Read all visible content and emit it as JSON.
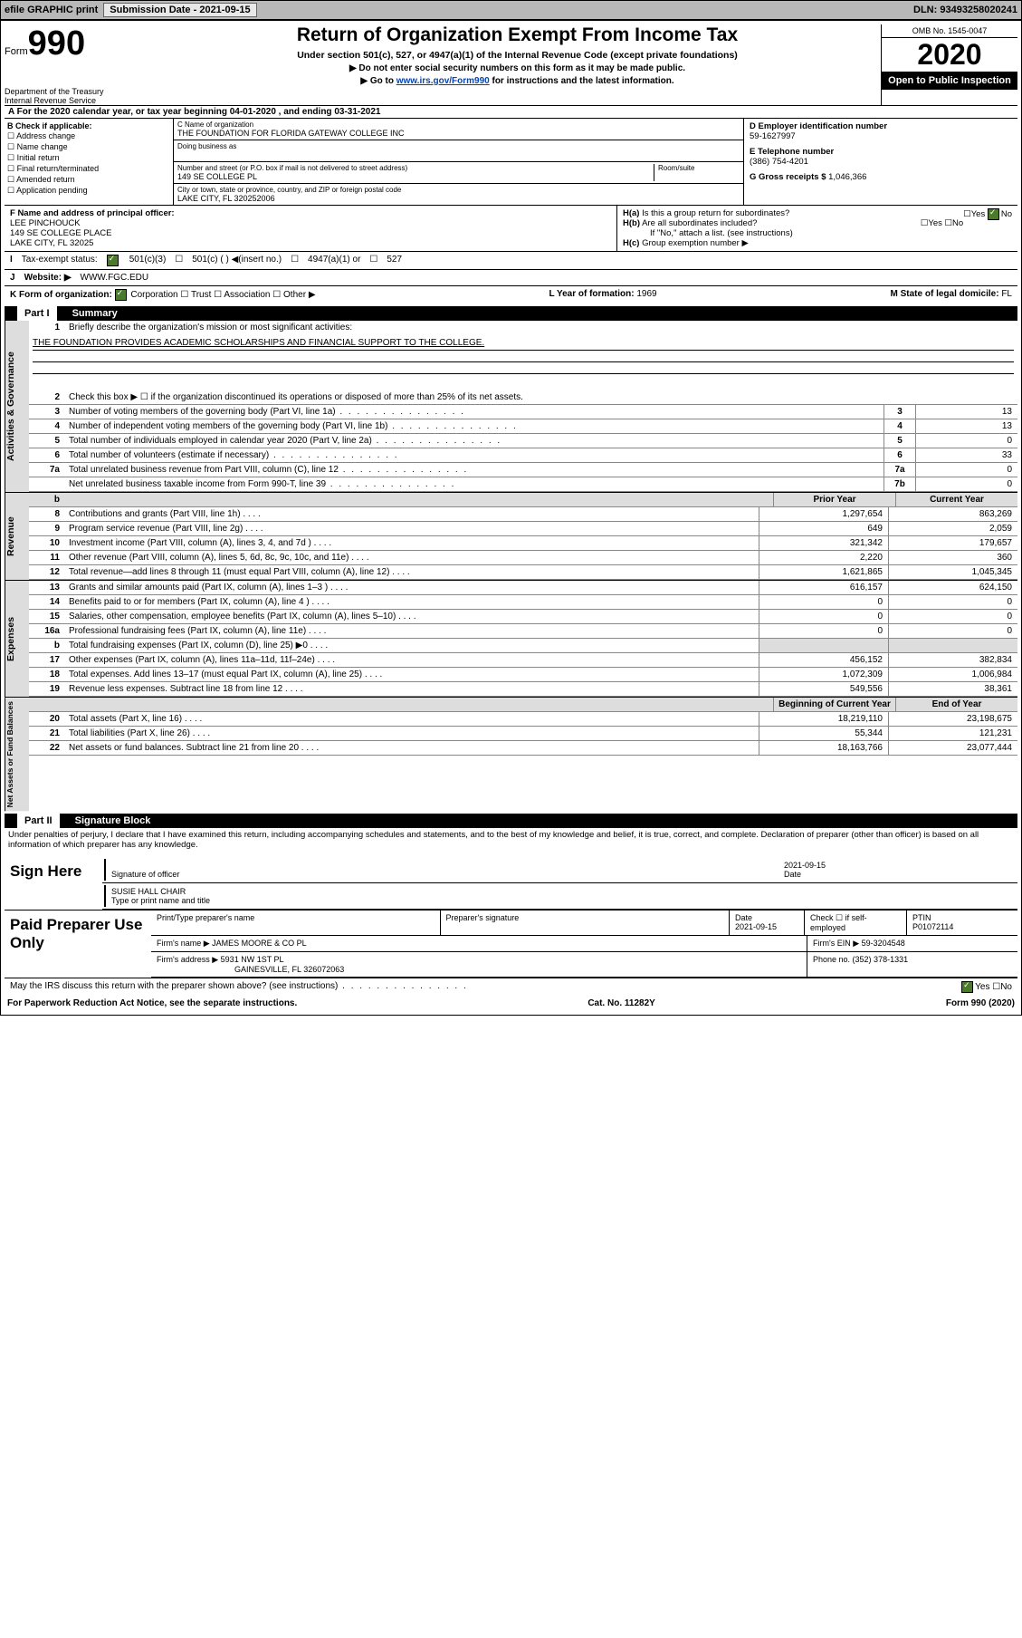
{
  "topbar": {
    "efile": "efile GRAPHIC print",
    "subdate_lbl": "Submission Date - ",
    "subdate": "2021-09-15",
    "dln_lbl": "DLN: ",
    "dln": "93493258020241"
  },
  "hdr": {
    "form": "Form",
    "n990": "990",
    "title": "Return of Organization Exempt From Income Tax",
    "sub": "Under section 501(c), 527, or 4947(a)(1) of the Internal Revenue Code (except private foundations)",
    "l1": "▶ Do not enter social security numbers on this form as it may be made public.",
    "l2a": "▶ Go to ",
    "l2link": "www.irs.gov/Form990",
    "l2b": " for instructions and the latest information.",
    "dept": "Department of the Treasury\nInternal Revenue Service",
    "omb": "OMB No. 1545-0047",
    "year": "2020",
    "open": "Open to Public Inspection"
  },
  "A": {
    "txt": "A For the 2020 calendar year, or tax year beginning 04-01-2020     , and ending 03-31-2021"
  },
  "B": {
    "hdr": "B Check if applicable:",
    "items": [
      "Address change",
      "Name change",
      "Initial return",
      "Final return/terminated",
      "Amended return",
      "Application pending"
    ]
  },
  "C": {
    "namelbl": "C Name of organization",
    "name": "THE FOUNDATION FOR FLORIDA GATEWAY COLLEGE INC",
    "dba": "Doing business as",
    "addrlbl": "Number and street (or P.O. box if mail is not delivered to street address)",
    "addr": "149 SE COLLEGE PL",
    "room": "Room/suite",
    "citylbl": "City or town, state or province, country, and ZIP or foreign postal code",
    "city": "LAKE CITY, FL  320252006"
  },
  "D": {
    "lbl": "D Employer identification number",
    "val": "59-1627997"
  },
  "E": {
    "lbl": "E Telephone number",
    "val": "(386) 754-4201"
  },
  "G": {
    "lbl": "G Gross receipts $ ",
    "val": "1,046,366"
  },
  "F": {
    "lbl": "F  Name and address of principal officer:",
    "name": "LEE PINCHOUCK",
    "addr1": "149 SE COLLEGE PLACE",
    "addr2": "LAKE CITY, FL  32025"
  },
  "H": {
    "a": "Is this a group return for subordinates?",
    "b": "Are all subordinates included?",
    "bno": "If \"No,\" attach a list. (see instructions)",
    "c": "Group exemption number ▶"
  },
  "I": {
    "lbl": "Tax-exempt status:",
    "o1": "501(c)(3)",
    "o2": "501(c) (   ) ◀(insert no.)",
    "o3": "4947(a)(1) or",
    "o4": "527"
  },
  "J": {
    "lbl": "Website: ▶",
    "val": "WWW.FGC.EDU"
  },
  "K": {
    "lbl": "K Form of organization:",
    "o1": "Corporation",
    "o2": "Trust",
    "o3": "Association",
    "o4": "Other ▶"
  },
  "L": {
    "lbl": "L Year of formation: ",
    "val": "1969"
  },
  "M": {
    "lbl": "M State of legal domicile: ",
    "val": "FL"
  },
  "partI": {
    "title": "Part I",
    "sub": "Summary"
  },
  "p1": {
    "l1": "Briefly describe the organization's mission or most significant activities:",
    "mission": "THE FOUNDATION PROVIDES ACADEMIC SCHOLARSHIPS AND FINANCIAL SUPPORT TO THE COLLEGE.",
    "l2": "Check this box ▶ ☐  if the organization discontinued its operations or disposed of more than 25% of its net assets.",
    "l3": "Number of voting members of the governing body (Part VI, line 1a)",
    "l4": "Number of independent voting members of the governing body (Part VI, line 1b)",
    "l5": "Total number of individuals employed in calendar year 2020 (Part V, line 2a)",
    "l6": "Total number of volunteers (estimate if necessary)",
    "l7a": "Total unrelated business revenue from Part VIII, column (C), line 12",
    "l7b": "Net unrelated business taxable income from Form 990-T, line 39",
    "v3": "13",
    "v4": "13",
    "v5": "0",
    "v6": "33",
    "v7a": "0",
    "v7b": "0"
  },
  "cols": {
    "prior": "Prior Year",
    "curr": "Current Year",
    "boy": "Beginning of Current Year",
    "eoy": "End of Year"
  },
  "rev": {
    "vl": "Revenue",
    "r": [
      {
        "n": "8",
        "d": "Contributions and grants (Part VIII, line 1h)",
        "p": "1,297,654",
        "c": "863,269"
      },
      {
        "n": "9",
        "d": "Program service revenue (Part VIII, line 2g)",
        "p": "649",
        "c": "2,059"
      },
      {
        "n": "10",
        "d": "Investment income (Part VIII, column (A), lines 3, 4, and 7d )",
        "p": "321,342",
        "c": "179,657"
      },
      {
        "n": "11",
        "d": "Other revenue (Part VIII, column (A), lines 5, 6d, 8c, 9c, 10c, and 11e)",
        "p": "2,220",
        "c": "360"
      },
      {
        "n": "12",
        "d": "Total revenue—add lines 8 through 11 (must equal Part VIII, column (A), line 12)",
        "p": "1,621,865",
        "c": "1,045,345"
      }
    ]
  },
  "exp": {
    "vl": "Expenses",
    "r": [
      {
        "n": "13",
        "d": "Grants and similar amounts paid (Part IX, column (A), lines 1–3 )",
        "p": "616,157",
        "c": "624,150"
      },
      {
        "n": "14",
        "d": "Benefits paid to or for members (Part IX, column (A), line 4 )",
        "p": "0",
        "c": "0"
      },
      {
        "n": "15",
        "d": "Salaries, other compensation, employee benefits (Part IX, column (A), lines 5–10)",
        "p": "0",
        "c": "0"
      },
      {
        "n": "16a",
        "d": "Professional fundraising fees (Part IX, column (A), line 11e)",
        "p": "0",
        "c": "0"
      },
      {
        "n": "b",
        "d": "Total fundraising expenses (Part IX, column (D), line 25) ▶0",
        "p": "",
        "c": "",
        "shade": true
      },
      {
        "n": "17",
        "d": "Other expenses (Part IX, column (A), lines 11a–11d, 11f–24e)",
        "p": "456,152",
        "c": "382,834"
      },
      {
        "n": "18",
        "d": "Total expenses. Add lines 13–17 (must equal Part IX, column (A), line 25)",
        "p": "1,072,309",
        "c": "1,006,984"
      },
      {
        "n": "19",
        "d": "Revenue less expenses. Subtract line 18 from line 12",
        "p": "549,556",
        "c": "38,361"
      }
    ]
  },
  "net": {
    "vl": "Net Assets or Fund Balances",
    "r": [
      {
        "n": "20",
        "d": "Total assets (Part X, line 16)",
        "p": "18,219,110",
        "c": "23,198,675"
      },
      {
        "n": "21",
        "d": "Total liabilities (Part X, line 26)",
        "p": "55,344",
        "c": "121,231"
      },
      {
        "n": "22",
        "d": "Net assets or fund balances. Subtract line 21 from line 20",
        "p": "18,163,766",
        "c": "23,077,444"
      }
    ]
  },
  "partII": {
    "title": "Part II",
    "sub": "Signature Block",
    "decl": "Under penalties of perjury, I declare that I have examined this return, including accompanying schedules and statements, and to the best of my knowledge and belief, it is true, correct, and complete. Declaration of preparer (other than officer) is based on all information of which preparer has any knowledge."
  },
  "sign": {
    "here": "Sign Here",
    "sig": "Signature of officer",
    "date": "Date",
    "dateval": "2021-09-15",
    "name": "SUSIE HALL  CHAIR",
    "namelbl": "Type or print name and title"
  },
  "prep": {
    "title": "Paid Preparer Use Only",
    "h": [
      "Print/Type preparer's name",
      "Preparer's signature",
      "Date",
      "",
      "PTIN"
    ],
    "date": "2021-09-15",
    "selfemp": "Check ☐  if self-employed",
    "ptin": "P01072114",
    "firmname_l": "Firm's name    ▶",
    "firmname": "JAMES MOORE & CO PL",
    "ein_l": "Firm's EIN ▶",
    "ein": "59-3204548",
    "addr_l": "Firm's address ▶",
    "addr1": "5931 NW 1ST PL",
    "addr2": "GAINESVILLE, FL  326072063",
    "phone_l": "Phone no. ",
    "phone": "(352) 378-1331"
  },
  "discuss": {
    "q": "May the IRS discuss this return with the preparer shown above? (see instructions)",
    "yes": "Yes",
    "no": "No"
  },
  "foot": {
    "l": "For Paperwork Reduction Act Notice, see the separate instructions.",
    "c": "Cat. No. 11282Y",
    "r": "Form 990 (2020)"
  },
  "labels": {
    "gov": "Activities & Governance"
  }
}
